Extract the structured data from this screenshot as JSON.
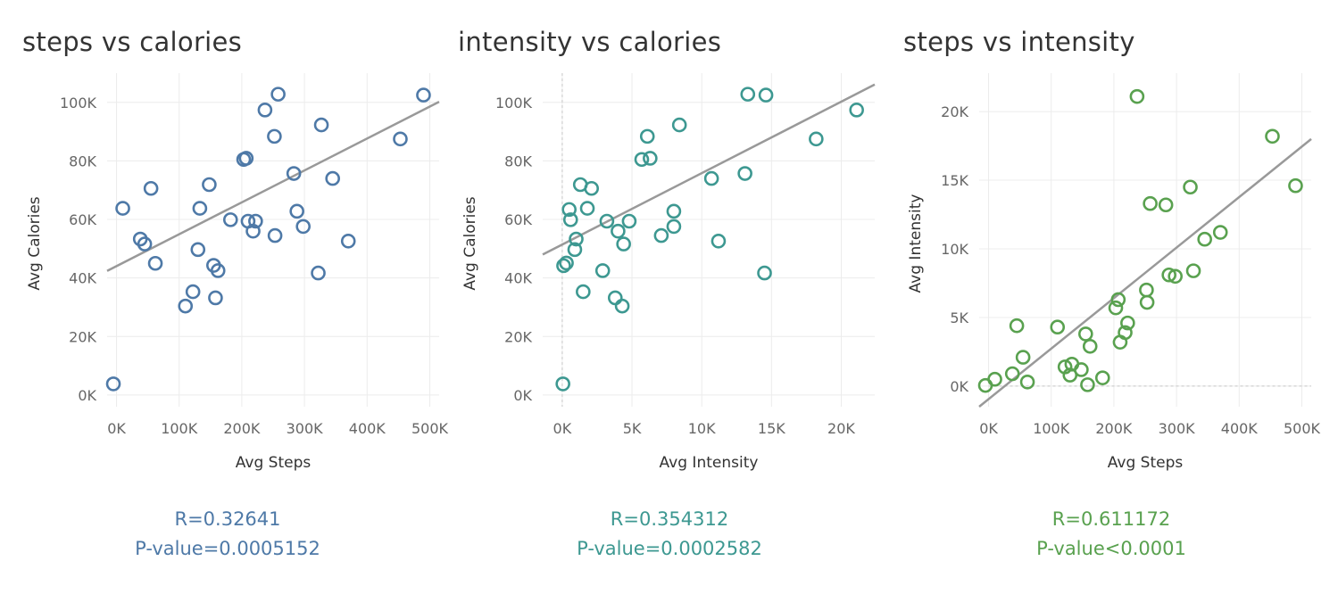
{
  "colors": {
    "panel1": "#4e79a7",
    "panel2": "#3d9891",
    "panel3": "#59a14f",
    "trend": "#999999",
    "grid": "#ececec"
  },
  "chart_data": [
    {
      "type": "scatter",
      "title": "steps vs calories",
      "xlabel": "Avg Steps",
      "ylabel": "Avg Calories",
      "xlim": [
        -15000,
        515000
      ],
      "ylim": [
        -4000,
        110000
      ],
      "xticks": [
        0,
        100000,
        200000,
        300000,
        400000,
        500000
      ],
      "xtick_labels": [
        "0K",
        "100K",
        "200K",
        "300K",
        "400K",
        "500K"
      ],
      "yticks": [
        0,
        20000,
        40000,
        60000,
        80000,
        100000
      ],
      "ytick_labels": [
        "0K",
        "20K",
        "40K",
        "60K",
        "80K",
        "100K"
      ],
      "grid": true,
      "trendline": [
        [
          -15000,
          42400
        ],
        [
          515000,
          100200
        ]
      ],
      "points": [
        [
          -5000,
          3800
        ],
        [
          10000,
          63800
        ],
        [
          38000,
          53300
        ],
        [
          45000,
          51600
        ],
        [
          55000,
          70600
        ],
        [
          62000,
          45000
        ],
        [
          110000,
          30400
        ],
        [
          122000,
          35300
        ],
        [
          130000,
          49700
        ],
        [
          133000,
          63800
        ],
        [
          148000,
          71900
        ],
        [
          155000,
          44300
        ],
        [
          158000,
          33200
        ],
        [
          162000,
          42500
        ],
        [
          182000,
          59900
        ],
        [
          203000,
          80500
        ],
        [
          207000,
          80900
        ],
        [
          210000,
          59400
        ],
        [
          218000,
          56000
        ],
        [
          222000,
          59400
        ],
        [
          237000,
          97400
        ],
        [
          252000,
          88400
        ],
        [
          253000,
          54500
        ],
        [
          258000,
          102800
        ],
        [
          283000,
          75700
        ],
        [
          288000,
          62800
        ],
        [
          298000,
          57600
        ],
        [
          322000,
          41700
        ],
        [
          327000,
          92300
        ],
        [
          345000,
          74000
        ],
        [
          370000,
          52600
        ],
        [
          453000,
          87500
        ],
        [
          490000,
          102500
        ]
      ],
      "stats": {
        "r": "R=0.32641",
        "p": "P-value=0.0005152"
      }
    },
    {
      "type": "scatter",
      "title": "intensity vs calories",
      "xlabel": "Avg Intensity",
      "ylabel": "Avg Calories",
      "xlim": [
        -1400,
        22400
      ],
      "ylim": [
        -4000,
        110000
      ],
      "xticks": [
        0,
        5000,
        10000,
        15000,
        20000
      ],
      "xtick_labels": [
        "0K",
        "5K",
        "10K",
        "15K",
        "20K"
      ],
      "yticks": [
        0,
        20000,
        40000,
        60000,
        80000,
        100000
      ],
      "ytick_labels": [
        "0K",
        "20K",
        "40K",
        "60K",
        "80K",
        "100K"
      ],
      "grid": true,
      "trendline": [
        [
          -1400,
          48000
        ],
        [
          22400,
          106100
        ]
      ],
      "points": [
        [
          50,
          3800
        ],
        [
          100,
          44200
        ],
        [
          300,
          45100
        ],
        [
          500,
          63400
        ],
        [
          600,
          59900
        ],
        [
          900,
          49700
        ],
        [
          1000,
          53300
        ],
        [
          1300,
          71900
        ],
        [
          1500,
          35300
        ],
        [
          1800,
          63800
        ],
        [
          2100,
          70600
        ],
        [
          2900,
          42500
        ],
        [
          3200,
          59400
        ],
        [
          3800,
          33200
        ],
        [
          4000,
          56000
        ],
        [
          4300,
          30400
        ],
        [
          4400,
          51600
        ],
        [
          4800,
          59400
        ],
        [
          5700,
          80500
        ],
        [
          6100,
          88400
        ],
        [
          6300,
          80900
        ],
        [
          7100,
          54500
        ],
        [
          8000,
          57600
        ],
        [
          8000,
          62800
        ],
        [
          8400,
          92300
        ],
        [
          10700,
          74000
        ],
        [
          11200,
          52600
        ],
        [
          13100,
          75700
        ],
        [
          13300,
          102800
        ],
        [
          14500,
          41700
        ],
        [
          14600,
          102500
        ],
        [
          18200,
          87500
        ],
        [
          21100,
          97400
        ]
      ],
      "stats": {
        "r": "R=0.354312",
        "p": "P-value=0.0002582"
      }
    },
    {
      "type": "scatter",
      "title": "steps vs intensity",
      "xlabel": "Avg Steps",
      "ylabel": "Avg Intensity",
      "xlim": [
        -15000,
        515000
      ],
      "ylim": [
        -1500,
        22800
      ],
      "xticks": [
        0,
        100000,
        200000,
        300000,
        400000,
        500000
      ],
      "xtick_labels": [
        "0K",
        "100K",
        "200K",
        "300K",
        "400K",
        "500K"
      ],
      "yticks": [
        0,
        5000,
        10000,
        15000,
        20000
      ],
      "ytick_labels": [
        "0K",
        "5K",
        "10K",
        "15K",
        "20K"
      ],
      "grid": true,
      "trendline": [
        [
          -15000,
          -1500
        ],
        [
          515000,
          18000
        ]
      ],
      "points": [
        [
          -5000,
          50
        ],
        [
          10000,
          500
        ],
        [
          38000,
          900
        ],
        [
          45000,
          4400
        ],
        [
          55000,
          2100
        ],
        [
          62000,
          300
        ],
        [
          110000,
          4300
        ],
        [
          122000,
          1400
        ],
        [
          130000,
          800
        ],
        [
          133000,
          1600
        ],
        [
          148000,
          1200
        ],
        [
          155000,
          3800
        ],
        [
          158000,
          100
        ],
        [
          162000,
          2900
        ],
        [
          182000,
          600
        ],
        [
          203000,
          5700
        ],
        [
          207000,
          6300
        ],
        [
          210000,
          3200
        ],
        [
          218000,
          3900
        ],
        [
          222000,
          4600
        ],
        [
          237000,
          21100
        ],
        [
          252000,
          7000
        ],
        [
          253000,
          6100
        ],
        [
          258000,
          13300
        ],
        [
          283000,
          13200
        ],
        [
          288000,
          8100
        ],
        [
          298000,
          8000
        ],
        [
          322000,
          14500
        ],
        [
          327000,
          8400
        ],
        [
          345000,
          10700
        ],
        [
          370000,
          11200
        ],
        [
          453000,
          18200
        ],
        [
          490000,
          14600
        ]
      ],
      "stats": {
        "r": "R=0.611172",
        "p": "P-value<0.0001"
      }
    }
  ]
}
